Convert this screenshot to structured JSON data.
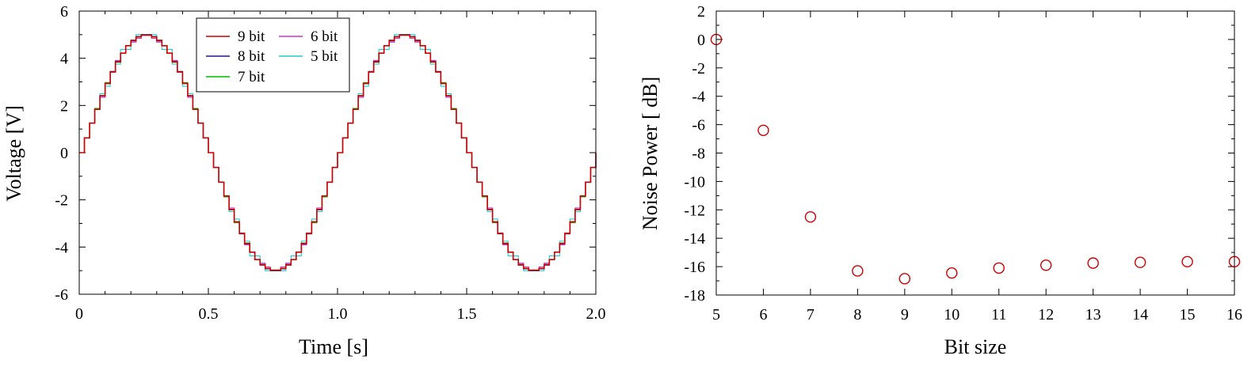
{
  "chart_data": [
    {
      "type": "line",
      "xlabel": "Time [s]",
      "ylabel": "Voltage [V]",
      "xlim": [
        0,
        2.0
      ],
      "ylim": [
        -6,
        6
      ],
      "x_ticks": [
        "0",
        "0.5",
        "1.0",
        "1.5",
        "2.0"
      ],
      "x_tick_values": [
        0,
        0.5,
        1.0,
        1.5,
        2.0
      ],
      "y_ticks": [
        "-6",
        "-4",
        "-2",
        "0",
        "2",
        "4",
        "6"
      ],
      "y_tick_values": [
        -6,
        -4,
        -2,
        0,
        2,
        4,
        6
      ],
      "signal": {
        "amplitude": 5,
        "frequency_hz": 1,
        "sample_step_s": 0.02
      },
      "legend_position": "top-center",
      "series": [
        {
          "name": "9 bit",
          "bits": 9,
          "color": "#cc0000"
        },
        {
          "name": "8 bit",
          "bits": 8,
          "color": "#1a1a8c"
        },
        {
          "name": "7 bit",
          "bits": 7,
          "color": "#00bb00"
        },
        {
          "name": "6 bit",
          "bits": 6,
          "color": "#cc33cc"
        },
        {
          "name": "5 bit",
          "bits": 5,
          "color": "#22cccc"
        }
      ]
    },
    {
      "type": "scatter",
      "xlabel": "Bit size",
      "ylabel": "Noise Power [ dB]",
      "xlim": [
        5,
        16
      ],
      "ylim": [
        -18,
        2
      ],
      "x_ticks": [
        "5",
        "6",
        "7",
        "8",
        "9",
        "10",
        "11",
        "12",
        "13",
        "14",
        "15",
        "16"
      ],
      "x_tick_values": [
        5,
        6,
        7,
        8,
        9,
        10,
        11,
        12,
        13,
        14,
        15,
        16
      ],
      "y_ticks": [
        "-18",
        "-16",
        "-14",
        "-12",
        "-10",
        "-8",
        "-6",
        "-4",
        "-2",
        "0",
        "2"
      ],
      "y_tick_values": [
        -18,
        -16,
        -14,
        -12,
        -10,
        -8,
        -6,
        -4,
        -2,
        0,
        2
      ],
      "marker_color": "#cc0000",
      "x": [
        5,
        6,
        7,
        8,
        9,
        10,
        11,
        12,
        13,
        14,
        15,
        16
      ],
      "y": [
        0,
        -6.4,
        -12.5,
        -16.3,
        -16.85,
        -16.45,
        -16.1,
        -15.9,
        -15.75,
        -15.7,
        -15.65,
        -15.65
      ]
    }
  ]
}
